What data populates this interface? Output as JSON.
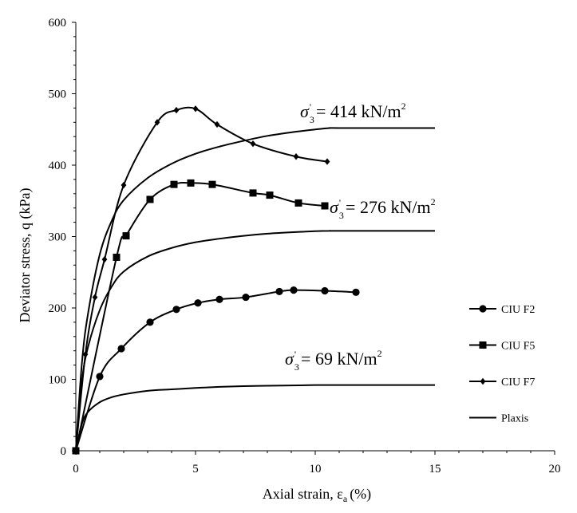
{
  "chart_data": {
    "type": "line",
    "xlabel": "Axial strain, ε",
    "xlabel_sub": "a",
    "xlabel_unit": "(%)",
    "ylabel": "Deviator stress, q (kPa)",
    "xlim": [
      0,
      20
    ],
    "ylim": [
      0,
      600
    ],
    "x_ticks": [
      0,
      5,
      10,
      15,
      20
    ],
    "y_ticks": [
      0,
      100,
      200,
      300,
      400,
      500,
      600
    ],
    "grid": false,
    "legend_position": "right",
    "series": [
      {
        "name": "CIU F2",
        "marker": "circle",
        "x": [
          0,
          1.0,
          1.9,
          3.1,
          4.2,
          5.1,
          6.0,
          7.1,
          8.5,
          9.1,
          10.4,
          11.7
        ],
        "y": [
          0,
          104,
          143,
          180,
          198,
          207,
          212,
          215,
          223,
          225,
          224,
          222
        ]
      },
      {
        "name": "CIU F5",
        "marker": "square",
        "x": [
          0,
          1.7,
          2.1,
          3.1,
          4.1,
          4.8,
          5.7,
          7.4,
          8.1,
          9.3,
          10.4
        ],
        "y": [
          0,
          271,
          301,
          352,
          373,
          375,
          373,
          361,
          358,
          347,
          343
        ]
      },
      {
        "name": "CIU F7",
        "marker": "diamond",
        "x": [
          0,
          0.4,
          0.8,
          1.2,
          2.0,
          3.4,
          4.2,
          5.0,
          5.9,
          7.4,
          9.2,
          10.5
        ],
        "y": [
          0,
          135,
          215,
          268,
          372,
          460,
          477,
          479,
          457,
          430,
          412,
          405
        ]
      },
      {
        "name": "Plaxis",
        "marker": "none",
        "x": [
          0,
          0.25,
          0.5,
          1,
          1.5,
          2,
          3,
          4,
          5,
          6,
          7,
          8,
          9,
          10,
          10.6,
          11,
          15
        ],
        "y": [
          0,
          37,
          54,
          68,
          75,
          79,
          84,
          86,
          88,
          89.5,
          90.5,
          91,
          91.5,
          92,
          92,
          92,
          92
        ]
      },
      {
        "name": "Plaxis",
        "marker": "none",
        "x": [
          0,
          0.25,
          0.5,
          1,
          1.5,
          2,
          3,
          4,
          5,
          6,
          7,
          8,
          9,
          10,
          10.6,
          11,
          15
        ],
        "y": [
          0,
          96,
          144,
          197,
          230,
          251,
          272,
          284,
          292,
          297,
          301,
          304,
          306,
          307.5,
          308,
          308,
          308
        ]
      },
      {
        "name": "Plaxis",
        "marker": "none",
        "x": [
          0,
          0.25,
          0.5,
          1,
          1.5,
          2,
          3,
          4,
          5,
          6,
          7,
          8,
          9,
          10,
          10.6,
          11,
          15
        ],
        "y": [
          0,
          121,
          190,
          275,
          322,
          351,
          382,
          402,
          416,
          426,
          434,
          441,
          446,
          450,
          452,
          452,
          452
        ]
      }
    ],
    "annotations": [
      {
        "sigma": "σ",
        "sub": "3",
        "sup": "'",
        "value": "= 414 kN/m",
        "exp": "2"
      },
      {
        "sigma": "σ",
        "sub": "3",
        "sup": "'",
        "value": "= 276 kN/m",
        "exp": "2"
      },
      {
        "sigma": "σ",
        "sub": "3",
        "sup": "'",
        "value": "= 69 kN/m",
        "exp": "2"
      }
    ]
  }
}
